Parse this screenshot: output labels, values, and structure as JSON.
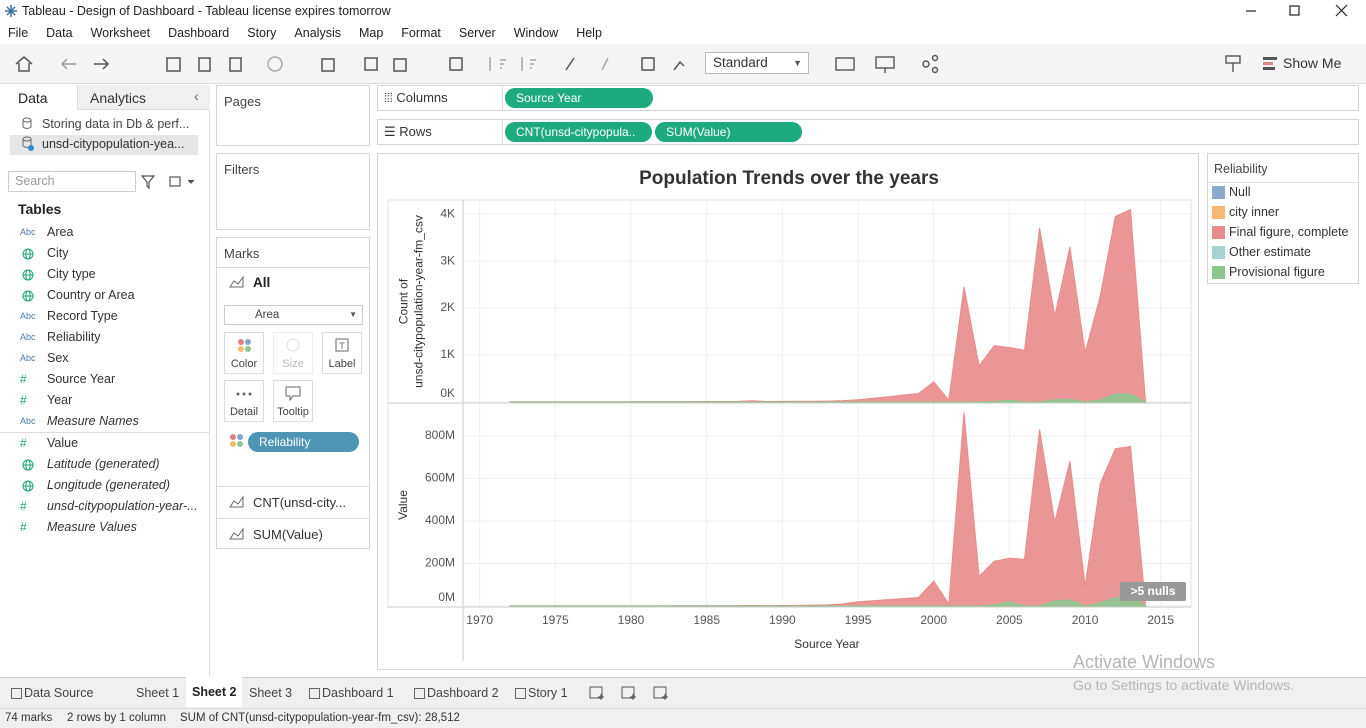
{
  "window": {
    "title": "Tableau - Design of Dashboard - Tableau license expires tomorrow"
  },
  "menu": [
    "File",
    "Data",
    "Worksheet",
    "Dashboard",
    "Story",
    "Analysis",
    "Map",
    "Format",
    "Server",
    "Window",
    "Help"
  ],
  "toolbar": {
    "fit": "Standard",
    "show_me": "Show Me"
  },
  "data_pane": {
    "tabs": [
      "Data",
      "Analytics"
    ],
    "sources": [
      "Storing data in Db & perf...",
      "unsd-citypopulation-yea..."
    ],
    "search": "Search",
    "tables_heading": "Tables",
    "fields": [
      {
        "icon": "Abc",
        "name": "Area"
      },
      {
        "icon": null,
        "name": "City"
      },
      {
        "icon": null,
        "name": "City type"
      },
      {
        "icon": null,
        "name": "Country or Area"
      },
      {
        "icon": "Abc",
        "name": "Record Type"
      },
      {
        "icon": "Abc",
        "name": "Reliability"
      },
      {
        "icon": "Abc",
        "name": "Sex"
      },
      {
        "icon": "#",
        "name": "Source Year"
      },
      {
        "icon": "#",
        "name": "Year"
      },
      {
        "icon": "Abc",
        "name": "Measure Names",
        "italic": true
      },
      {
        "icon": "#",
        "name": "Value"
      },
      {
        "icon": null,
        "name": "Latitude (generated)",
        "italic": true
      },
      {
        "icon": null,
        "name": "Longitude (generated)",
        "italic": true
      },
      {
        "icon": "#",
        "name": "unsd-citypopulation-year-...",
        "italic": true
      },
      {
        "icon": "#",
        "name": "Measure Values",
        "italic": true
      }
    ]
  },
  "shelves": {
    "pages": "Pages",
    "filters": "Filters",
    "marks": "Marks",
    "all": "All",
    "mark_type": "Area",
    "mark_buttons": [
      "Color",
      "Size",
      "Label",
      "Detail",
      "Tooltip"
    ],
    "color_pill": "Reliability",
    "measure_cards": [
      "CNT(unsd-city...",
      "SUM(Value)"
    ],
    "columns": {
      "label": "Columns",
      "pills": [
        "Source Year"
      ]
    },
    "rows": {
      "label": "Rows",
      "pills": [
        "CNT(unsd-citypopula..",
        "SUM(Value)"
      ]
    }
  },
  "chart_data": {
    "type": "area",
    "title": "Population Trends over the years",
    "xlabel": "Source Year",
    "x": [
      1972,
      1973,
      1974,
      1975,
      1976,
      1977,
      1978,
      1979,
      1980,
      1981,
      1982,
      1983,
      1984,
      1985,
      1986,
      1987,
      1988,
      1989,
      1990,
      1991,
      1992,
      1993,
      1994,
      1995,
      1996,
      1997,
      1998,
      1999,
      2000,
      2001,
      2002,
      2003,
      2004,
      2005,
      2006,
      2007,
      2008,
      2009,
      2010,
      2011,
      2012,
      2013,
      2014
    ],
    "xlim": [
      1968.9,
      2017
    ],
    "xticks": [
      1970,
      1975,
      1980,
      1985,
      1990,
      1995,
      2000,
      2005,
      2010,
      2015
    ],
    "grid": true,
    "null_indicator": ">5 nulls",
    "panes": [
      {
        "ylabel": [
          "Count of",
          "unsd-citypopulation-year-fm_csv"
        ],
        "ylim": [
          0,
          4280
        ],
        "yticks": [
          {
            "value": 0,
            "label": "0K"
          },
          {
            "value": 1000,
            "label": "1K"
          },
          {
            "value": 2000,
            "label": "2K"
          },
          {
            "value": 3000,
            "label": "3K"
          },
          {
            "value": 4000,
            "label": "4K"
          }
        ],
        "series": [
          {
            "color": "#e88b8b",
            "values": [
              5,
              5,
              6,
              6,
              6,
              7,
              7,
              7,
              8,
              8,
              8,
              9,
              9,
              10,
              10,
              12,
              25,
              10,
              12,
              15,
              14,
              20,
              30,
              50,
              80,
              110,
              150,
              180,
              430,
              40,
              2450,
              770,
              1200,
              1160,
              1100,
              3700,
              1830,
              3300,
              1050,
              2250,
              3950,
              4100,
              0
            ]
          },
          {
            "color": "#8ec58e",
            "values": [
              0,
              0,
              0,
              0,
              0,
              0,
              0,
              0,
              0,
              0,
              0,
              0,
              0,
              0,
              0,
              0,
              0,
              0,
              0,
              0,
              0,
              0,
              0,
              0,
              0,
              0,
              0,
              0,
              0,
              0,
              0,
              0,
              10,
              40,
              0,
              0,
              50,
              60,
              0,
              40,
              170,
              170,
              0
            ]
          }
        ]
      },
      {
        "ylabel": [
          "Value"
        ],
        "ylim": [
          0,
          950000000
        ],
        "yticks": [
          {
            "value": 0,
            "label": "0M"
          },
          {
            "value": 200000000,
            "label": "200M"
          },
          {
            "value": 400000000,
            "label": "400M"
          },
          {
            "value": 600000000,
            "label": "600M"
          },
          {
            "value": 800000000,
            "label": "800M"
          }
        ],
        "series": [
          {
            "color": "#e88b8b",
            "values": [
              1000000,
              1000000,
              1000000,
              1000000,
              1000000,
              1000000,
              1000000,
              1000000,
              1000000,
              1000000,
              1000000,
              2000000,
              2000000,
              2000000,
              2000000,
              2000000,
              3000000,
              2000000,
              3000000,
              3000000,
              4000000,
              5000000,
              10000000,
              20000000,
              25000000,
              30000000,
              35000000,
              40000000,
              118000000,
              10000000,
              910000000,
              140000000,
              210000000,
              225000000,
              220000000,
              830000000,
              395000000,
              680000000,
              95000000,
              575000000,
              740000000,
              750000000,
              0
            ]
          },
          {
            "color": "#8ec58e",
            "values": [
              0,
              0,
              0,
              0,
              0,
              0,
              0,
              0,
              0,
              0,
              0,
              0,
              0,
              0,
              0,
              0,
              0,
              0,
              0,
              0,
              0,
              0,
              0,
              0,
              0,
              0,
              0,
              0,
              0,
              0,
              0,
              0,
              5000000,
              20000000,
              0,
              0,
              25000000,
              28000000,
              0,
              15000000,
              40000000,
              45000000,
              0
            ]
          }
        ]
      }
    ],
    "legend": {
      "title": "Reliability",
      "items": [
        {
          "name": "Null",
          "color": "#8eaacb"
        },
        {
          "name": "city inner",
          "color": "#f5b971"
        },
        {
          "name": "Final figure, complete",
          "color": "#e88b8b"
        },
        {
          "name": "Other estimate",
          "color": "#a9d3d3"
        },
        {
          "name": "Provisional figure",
          "color": "#8ec58e"
        }
      ]
    }
  },
  "sheet_tabs": {
    "active": 2,
    "tabs": [
      "Data Source",
      "Sheet 1",
      "Sheet 2",
      "Sheet 3",
      "Dashboard 1",
      "Dashboard 2",
      "Story 1"
    ]
  },
  "status": {
    "marks": "74 marks",
    "layout": "2 rows by 1 column",
    "summary": "SUM of CNT(unsd-citypopulation-year-fm_csv): 28,512"
  },
  "watermark": {
    "title": "Activate Windows",
    "note": "Go to Settings to activate Windows."
  }
}
